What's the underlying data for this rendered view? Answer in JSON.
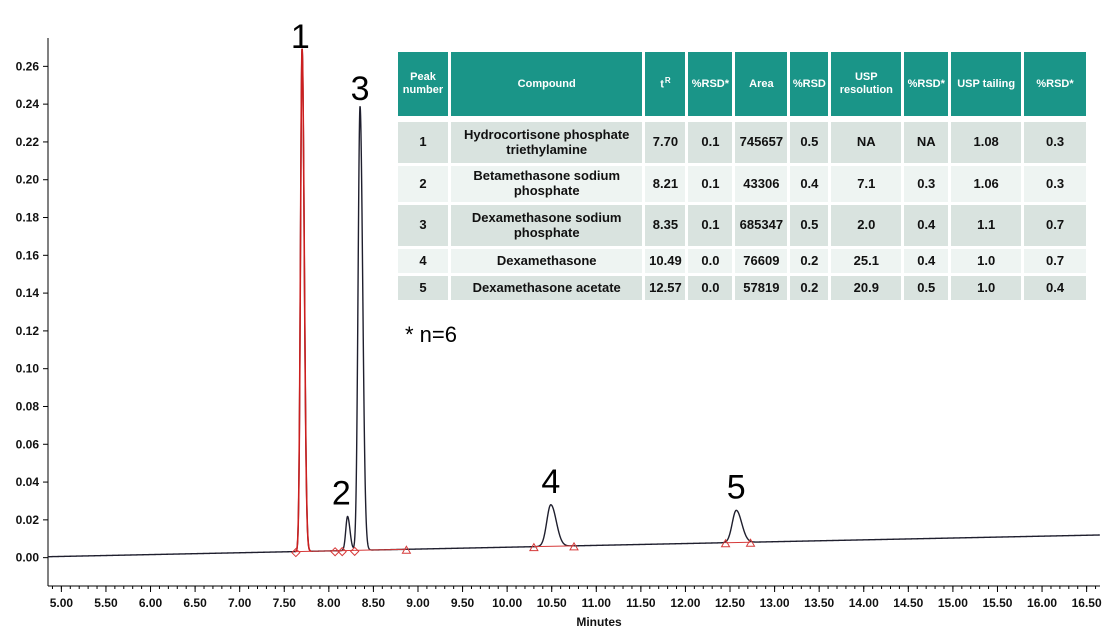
{
  "chart_data": {
    "type": "line",
    "xlabel": "Minutes",
    "ylabel": "",
    "xlim": [
      4.85,
      16.65
    ],
    "ylim": [
      -0.015,
      0.275
    ],
    "x_ticks": [
      "5.00",
      "5.50",
      "6.00",
      "6.50",
      "7.00",
      "7.50",
      "8.00",
      "8.50",
      "9.00",
      "9.50",
      "10.00",
      "10.50",
      "11.00",
      "11.50",
      "12.00",
      "12.50",
      "13.00",
      "13.50",
      "14.00",
      "14.50",
      "15.00",
      "15.50",
      "16.00",
      "16.50"
    ],
    "y_ticks": [
      "0.00",
      "0.02",
      "0.04",
      "0.06",
      "0.08",
      "0.10",
      "0.12",
      "0.14",
      "0.16",
      "0.18",
      "0.20",
      "0.22",
      "0.24",
      "0.26"
    ],
    "baseline": {
      "start_x": 4.85,
      "start_y": 0.0005,
      "end_x": 16.65,
      "end_y": 0.012
    },
    "peaks": [
      {
        "label": "1",
        "x": 7.7,
        "height": 0.266,
        "sigma": 0.018
      },
      {
        "label": "2",
        "x": 8.21,
        "height": 0.018,
        "sigma": 0.02
      },
      {
        "label": "3",
        "x": 8.35,
        "height": 0.235,
        "sigma": 0.022
      },
      {
        "label": "4",
        "x": 10.49,
        "height": 0.022,
        "sigma": 0.045
      },
      {
        "label": "5",
        "x": 12.57,
        "height": 0.017,
        "sigma": 0.045
      }
    ],
    "integration_marks": [
      {
        "shape": "diamond",
        "x": 7.63
      },
      {
        "shape": "diamond",
        "x": 8.07
      },
      {
        "shape": "diamond",
        "x": 8.15
      },
      {
        "shape": "diamond",
        "x": 8.29
      },
      {
        "shape": "triangle",
        "x": 8.87
      },
      {
        "shape": "triangle",
        "x": 10.3
      },
      {
        "shape": "triangle",
        "x": 10.75
      },
      {
        "shape": "triangle",
        "x": 12.45
      },
      {
        "shape": "triangle",
        "x": 12.73
      }
    ],
    "colors": {
      "trace": "#1f1f2e",
      "peak1": "#cc1f1f",
      "integration": "#d63a3a",
      "axis": "#000000"
    },
    "table": {
      "headers": [
        "Peak number",
        "Compound",
        "tR",
        "%RSD*",
        "Area",
        "%RSD",
        "USP resolution",
        "%RSD*",
        "USP tailing",
        "%RSD*"
      ],
      "rows": [
        [
          "1",
          "Hydrocortisone phosphate triethylamine",
          "7.70",
          "0.1",
          "745657",
          "0.5",
          "NA",
          "NA",
          "1.08",
          "0.3"
        ],
        [
          "2",
          "Betamethasone sodium phosphate",
          "8.21",
          "0.1",
          "43306",
          "0.4",
          "7.1",
          "0.3",
          "1.06",
          "0.3"
        ],
        [
          "3",
          "Dexamethasone sodium phosphate",
          "8.35",
          "0.1",
          "685347",
          "0.5",
          "2.0",
          "0.4",
          "1.1",
          "0.7"
        ],
        [
          "4",
          "Dexamethasone",
          "10.49",
          "0.0",
          "76609",
          "0.2",
          "25.1",
          "0.4",
          "1.0",
          "0.7"
        ],
        [
          "5",
          "Dexamethasone acetate",
          "12.57",
          "0.0",
          "57819",
          "0.2",
          "20.9",
          "0.5",
          "1.0",
          "0.4"
        ]
      ],
      "footnote": "* n=6"
    }
  }
}
